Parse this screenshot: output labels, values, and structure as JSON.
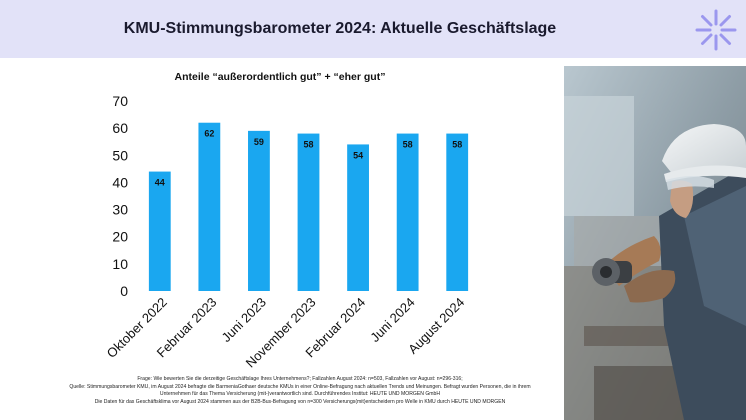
{
  "header": {
    "title": "KMU-Stimmungsbarometer 2024: Aktuelle Geschäftslage"
  },
  "colors": {
    "bar": "#1aa7f0",
    "header_bg": "#e2e2f8",
    "logo": "#9b97ee"
  },
  "chart_data": {
    "type": "bar",
    "title": "Anteile “außerordentlich gut” + “eher gut”",
    "categories": [
      "Oktober 2022",
      "Februar 2023",
      "Juni 2023",
      "November 2023",
      "Februar 2024",
      "Juni 2024",
      "August 2024"
    ],
    "values": [
      44,
      62,
      59,
      58,
      54,
      58,
      58
    ],
    "data_labels": [
      "44",
      "62",
      "59",
      "58",
      "54",
      "58",
      "58"
    ],
    "ylim": [
      0,
      70
    ],
    "yticks": [
      "0",
      "10",
      "20",
      "30",
      "40",
      "50",
      "60",
      "70"
    ],
    "xlabel": "",
    "ylabel": "",
    "grid": false,
    "legend": "none"
  },
  "footnotes": [
    "Frage: Wie bewerten Sie die derzeitige Geschäftslage Ihres Unternehmens?; Fallzahlen August 2024: n=503, Fallzahlen vor August: n=296-316;",
    "Quelle: Stimmungsbarometer KMU, im August 2024 befragte die BarmeniaGothaer deutsche KMUs in einer Online-Befragung nach aktuellen Trends und Meinungen. Befragt wurden Personen, die in ihrem",
    "Unternehmen für das Thema Versicherung (mit-)verantwortlich sind. Durchführendes Institut: HEUTE UND MORGEN GmbH",
    "Die Daten für das Geschäftsklima vor August 2024 stammen aus der B2B-Bus-Befragung von n=300 Versicherungs(mit)entscheidern pro Welle in KMU durch HEUTE UND MORGEN"
  ]
}
